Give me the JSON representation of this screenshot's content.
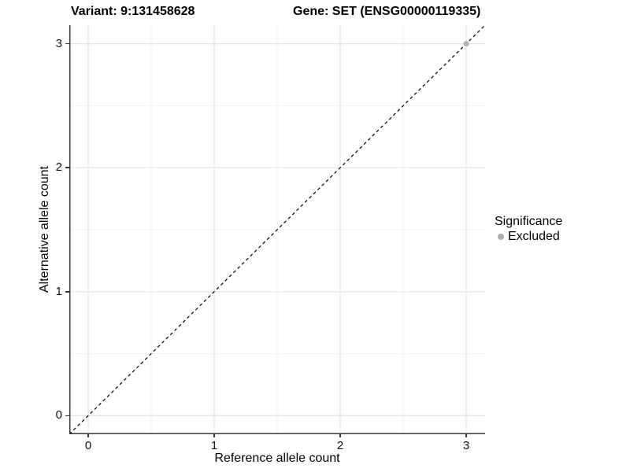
{
  "header": {
    "variant_title": "Variant: 9:131458628",
    "gene_title": "Gene: SET (ENSG00000119335)"
  },
  "chart_data": {
    "type": "scatter",
    "xlabel": "Reference allele count",
    "ylabel": "Alternative allele count",
    "xlim": [
      -0.15,
      3.15
    ],
    "ylim": [
      -0.15,
      3.15
    ],
    "xticks": [
      0,
      1,
      2,
      3
    ],
    "yticks": [
      0,
      1,
      2,
      3
    ],
    "x_minor_ticks": [
      0.5,
      1.5,
      2.5
    ],
    "y_minor_ticks": [
      0.5,
      1.5,
      2.5
    ],
    "grid": "major+minor",
    "identity_line": {
      "style": "dashed",
      "slope": 1,
      "intercept": 0,
      "color": "#000000"
    },
    "series": [
      {
        "name": "Excluded",
        "color": "#b0b0b0",
        "points": [
          {
            "x": 3,
            "y": 3
          }
        ]
      }
    ],
    "legend": {
      "title": "Significance",
      "position": "right",
      "entries": [
        {
          "label": "Excluded",
          "color": "#b0b0b0"
        }
      ]
    }
  },
  "colors": {
    "background": "#ffffff",
    "axis_line": "#3a3a3a",
    "grid_major": "#e4e4e4",
    "grid_minor": "#f3f3f3",
    "tick_label": "#111111",
    "title_text": "#000000"
  }
}
